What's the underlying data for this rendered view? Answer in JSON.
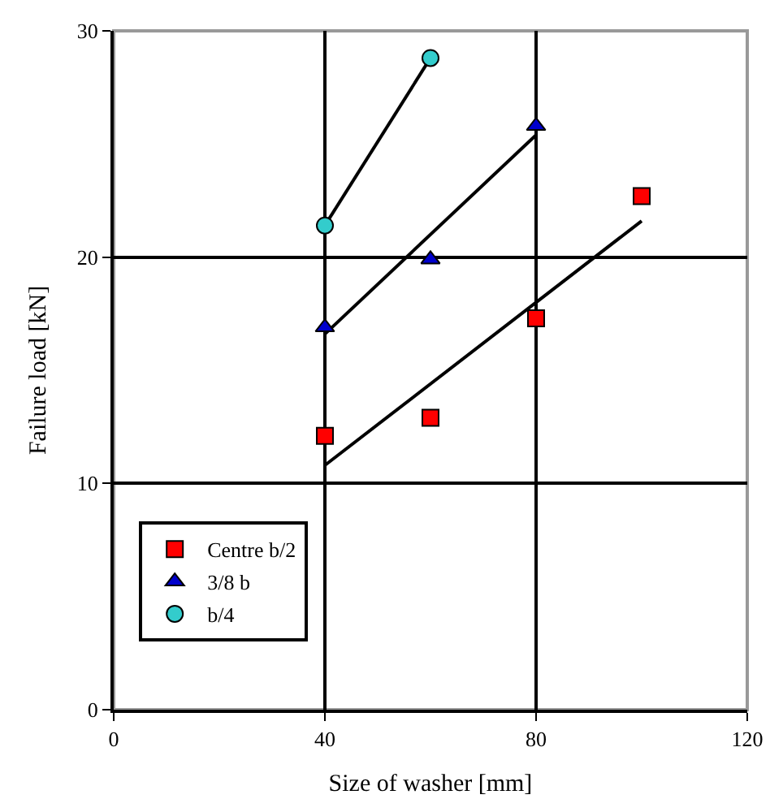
{
  "chart_data": {
    "type": "scatter",
    "xlabel": "Size of washer [mm]",
    "ylabel": "Failure load [kN]",
    "xlim": [
      0,
      120
    ],
    "xticks": [
      0,
      40,
      80,
      120
    ],
    "ylim": [
      0,
      30
    ],
    "yticks": [
      0,
      10,
      20,
      30
    ],
    "grid": true,
    "legend": "bottom left",
    "series": [
      {
        "name": "Centre b/2",
        "marker": "square",
        "color": "#ff0000",
        "x": [
          40,
          60,
          80,
          100
        ],
        "values": [
          12.1,
          12.9,
          17.3,
          22.7
        ]
      },
      {
        "name": "3/8 b",
        "marker": "triangle",
        "color": "#0000cc",
        "x": [
          40,
          60,
          80
        ],
        "values": [
          16.9,
          19.9,
          25.8
        ]
      },
      {
        "name": "b/4",
        "marker": "circle",
        "color": "#33cccc",
        "x": [
          40,
          60
        ],
        "values": [
          21.4,
          28.8
        ]
      },
      {
        "type": "line",
        "marker": "none",
        "color": "#000000",
        "x": [
          40,
          100
        ],
        "values": [
          10.8,
          21.6
        ]
      },
      {
        "type": "line",
        "marker": "none",
        "color": "#000000",
        "x": [
          40,
          80
        ],
        "values": [
          16.6,
          25.4
        ]
      },
      {
        "type": "line",
        "marker": "none",
        "color": "#000000",
        "x": [
          40,
          60
        ],
        "values": [
          21.4,
          28.8
        ]
      }
    ]
  }
}
